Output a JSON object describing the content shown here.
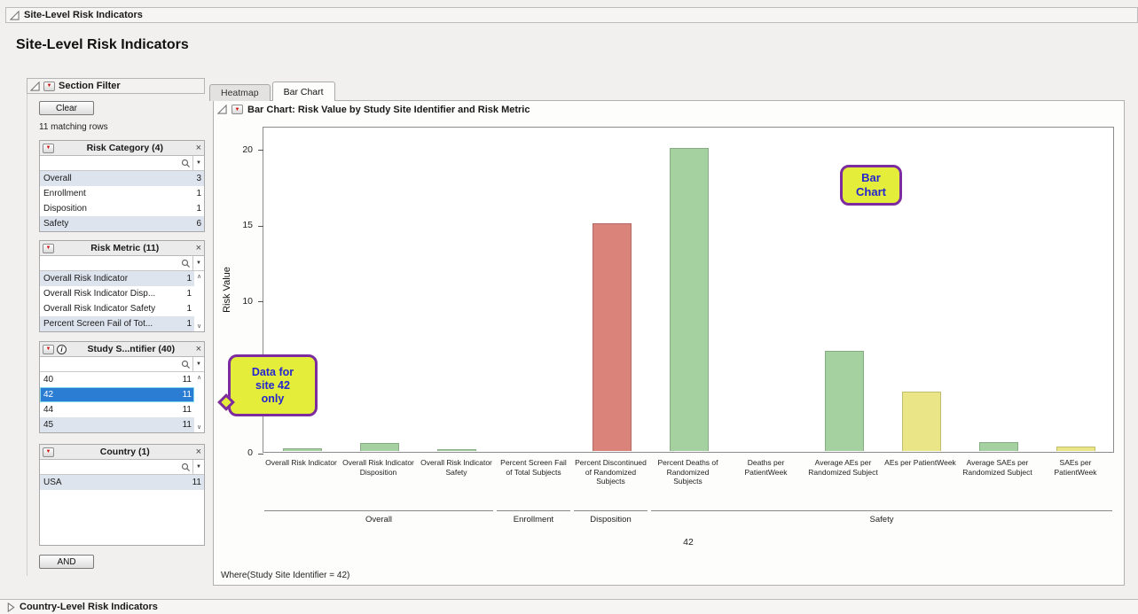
{
  "window": {
    "top_outline": "Site-Level Risk Indicators",
    "page_title": "Site-Level Risk Indicators",
    "bottom_outline": "Country-Level Risk Indicators"
  },
  "icons": {
    "red_menu": "▼",
    "close": "×",
    "dropdown": "▼",
    "scroll_up": "∧",
    "scroll_down": "∨",
    "info": "i"
  },
  "colors": {
    "selection_blue": "#2b7cd3",
    "shaded_row": "#dde4ee",
    "callout_fill": "#e4ee3a",
    "callout_border": "#7d2ca0",
    "callout_text": "#2525cf"
  },
  "filter_panel": {
    "title": "Section Filter",
    "clear_label": "Clear",
    "matching_rows": "11 matching rows",
    "and_label": "AND",
    "groups": [
      {
        "title": "Risk Category (4)",
        "search_value": "",
        "items": [
          {
            "label": "Overall",
            "count": "3",
            "state": "shaded"
          },
          {
            "label": "Enrollment",
            "count": "1",
            "state": "normal"
          },
          {
            "label": "Disposition",
            "count": "1",
            "state": "normal"
          },
          {
            "label": "Safety",
            "count": "6",
            "state": "shaded"
          }
        ]
      },
      {
        "title": "Risk Metric (11)",
        "search_value": "",
        "items": [
          {
            "label": "Overall Risk Indicator",
            "count": "1",
            "state": "shaded"
          },
          {
            "label": "Overall Risk Indicator Disp...",
            "count": "1",
            "state": "normal"
          },
          {
            "label": "Overall Risk Indicator Safety",
            "count": "1",
            "state": "normal"
          },
          {
            "label": "Percent Screen Fail of Tot...",
            "count": "1",
            "state": "shaded"
          }
        ]
      },
      {
        "title": "Study S...ntifier (40)",
        "search_value": "",
        "items": [
          {
            "label": "40",
            "count": "11",
            "state": "normal"
          },
          {
            "label": "42",
            "count": "11",
            "state": "selected"
          },
          {
            "label": "44",
            "count": "11",
            "state": "normal"
          },
          {
            "label": "45",
            "count": "11",
            "state": "shaded"
          }
        ]
      },
      {
        "title": "Country (1)",
        "search_value": "",
        "items": [
          {
            "label": "USA",
            "count": "11",
            "state": "shaded"
          }
        ]
      }
    ]
  },
  "tabs": [
    {
      "label": "Heatmap",
      "active": false
    },
    {
      "label": "Bar Chart",
      "active": true
    }
  ],
  "chart": {
    "header": "Bar Chart: Risk Value by Study Site Identifier and Risk Metric",
    "where_clause": "Where(Study Site Identifier = 42)"
  },
  "callouts": {
    "bar_chart": {
      "lines": [
        "Bar",
        "Chart"
      ]
    },
    "site_42": {
      "lines": [
        "Data for",
        "site 42",
        "only"
      ]
    }
  },
  "chart_data": {
    "type": "bar",
    "title": "Bar Chart: Risk Value by Study Site Identifier and Risk Metric",
    "ylabel": "Risk Value",
    "site": "42",
    "ylim": [
      0,
      21.5
    ],
    "yticks": [
      0,
      5,
      10,
      15,
      20
    ],
    "grid": false,
    "legend": "none",
    "categories": [
      "Overall Risk Indicator",
      "Overall Risk Indicator Disposition",
      "Overall Risk Indicator Safety",
      "Percent Screen Fail of Total Subjects",
      "Percent Discontinued of Randomized Subjects",
      "Percent Deaths of Randomized Subjects",
      "Deaths per PatientWeek",
      "Average AEs per Randomized Subject",
      "AEs per PatientWeek",
      "Average SAEs per Randomized Subject",
      "SAEs per PatientWeek"
    ],
    "values": [
      0.2,
      0.5,
      0.1,
      0,
      15,
      20,
      0,
      6.6,
      3.9,
      0.6,
      0.3
    ],
    "bar_colors": [
      "green",
      "green",
      "green",
      "green",
      "red",
      "green",
      "green",
      "green",
      "yellow",
      "green",
      "yellow"
    ],
    "palette": {
      "green": "#a5d1a0",
      "red": "#d9837a",
      "yellow": "#eae687"
    },
    "groups": [
      {
        "label": "Overall",
        "span": [
          0,
          2
        ]
      },
      {
        "label": "Enrollment",
        "span": [
          3,
          3
        ]
      },
      {
        "label": "Disposition",
        "span": [
          4,
          4
        ]
      },
      {
        "label": "Safety",
        "span": [
          5,
          10
        ]
      }
    ]
  }
}
